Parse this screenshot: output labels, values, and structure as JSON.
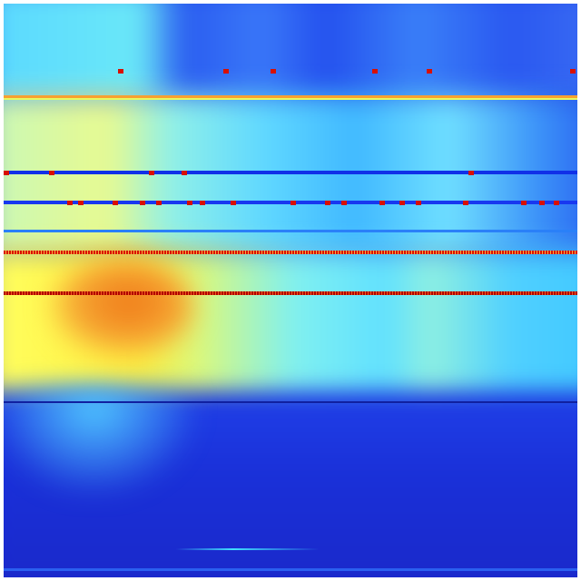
{
  "image": {
    "kind": "jet-colormap intensity map",
    "colormap": [
      "#00008f",
      "#0000ff",
      "#00ffff",
      "#ffff00",
      "#ff0000",
      "#800000"
    ],
    "colors": {
      "deep_blue": "#1a2fd0",
      "blue": "#2048f0",
      "cyan": "#40e8ff",
      "light_cyan": "#9af8e8",
      "yellow": "#fff540",
      "orange": "#f08a20",
      "red": "#d80000"
    }
  }
}
